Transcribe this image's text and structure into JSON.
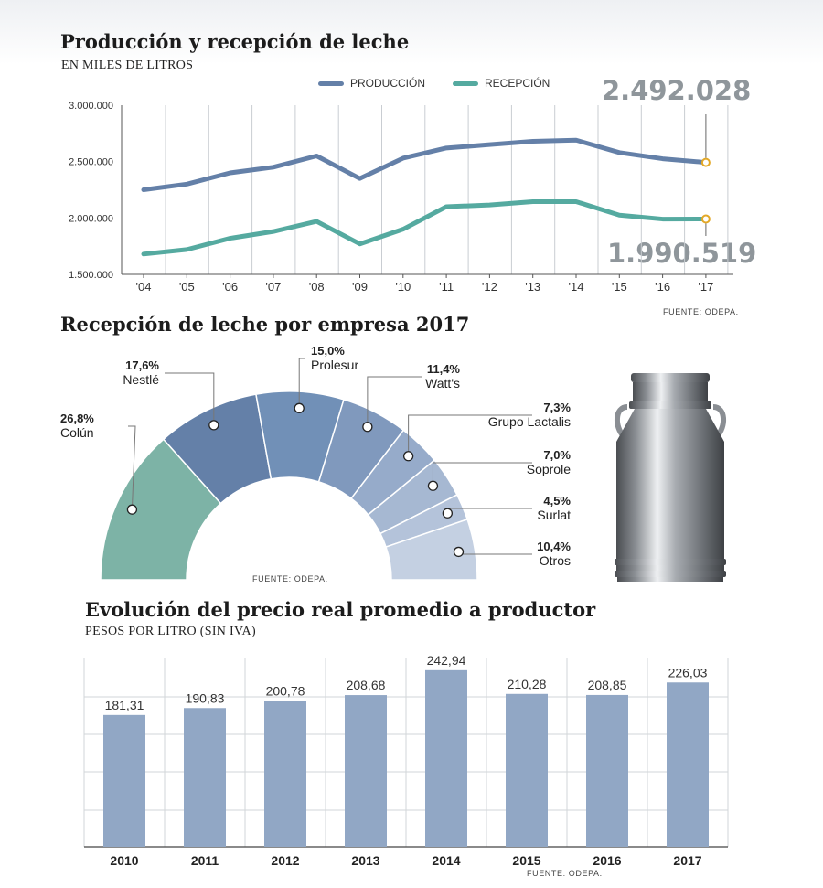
{
  "colors": {
    "produccion": "#6480a8",
    "recepcion": "#55aaa0",
    "marker": "#e3a826",
    "bar": "#91a7c5",
    "donut": [
      "#7db3a6",
      "#6480a8",
      "#7190b7",
      "#8099bd",
      "#96abca",
      "#a6b8d2",
      "#b4c3da",
      "#c4d0e2"
    ]
  },
  "chart_data": [
    {
      "type": "line",
      "title": "Producción y recepción de leche",
      "subtitle": "EN MILES DE LITROS",
      "x": [
        "'04",
        "'05",
        "'06",
        "'07",
        "'08",
        "'09",
        "'10",
        "'11",
        "'12",
        "'13",
        "'14",
        "'15",
        "'16",
        "'17"
      ],
      "y_ticks": [
        "3.000.000",
        "2.500.000",
        "2.000.000",
        "1.500.000"
      ],
      "ylim": [
        1500000,
        3000000
      ],
      "series": [
        {
          "name": "PRODUCCIÓN",
          "values": [
            2250000,
            2300000,
            2400000,
            2450000,
            2550000,
            2350000,
            2530000,
            2620000,
            2650000,
            2680000,
            2690000,
            2580000,
            2525000,
            2492028
          ]
        },
        {
          "name": "RECEPCIÓN",
          "values": [
            1680000,
            1720000,
            1820000,
            1880000,
            1970000,
            1770000,
            1900000,
            2100000,
            2115000,
            2145000,
            2145000,
            2025000,
            1990000,
            1990519
          ]
        }
      ],
      "callouts": {
        "produccion_last": "2.492.028",
        "recepcion_last": "1.990.519"
      },
      "source": "FUENTE: ODEPA.",
      "legend_position": "top-right",
      "grid": "vertical"
    },
    {
      "type": "pie",
      "title": "Recepción de leche por empresa 2017",
      "slices": [
        {
          "label": "Colún",
          "pct_label": "26,8%",
          "value": 26.8
        },
        {
          "label": "Nestlé",
          "pct_label": "17,6%",
          "value": 17.6
        },
        {
          "label": "Prolesur",
          "pct_label": "15,0%",
          "value": 15.0
        },
        {
          "label": "Watt's",
          "pct_label": "11,4%",
          "value": 11.4
        },
        {
          "label": "Grupo Lactalis",
          "pct_label": "7,3%",
          "value": 7.3
        },
        {
          "label": "Soprole",
          "pct_label": "7,0%",
          "value": 7.0
        },
        {
          "label": "Surlat",
          "pct_label": "4,5%",
          "value": 4.5
        },
        {
          "label": "Otros",
          "pct_label": "10,4%",
          "value": 10.4
        }
      ],
      "source": "FUENTE: ODEPA."
    },
    {
      "type": "bar",
      "title": "Evolución del precio real promedio a productor",
      "subtitle": "PESOS POR LITRO (SIN IVA)",
      "categories": [
        "2010",
        "2011",
        "2012",
        "2013",
        "2014",
        "2015",
        "2016",
        "2017"
      ],
      "values": [
        181.31,
        190.83,
        200.78,
        208.68,
        242.94,
        210.28,
        208.85,
        226.03
      ],
      "value_labels": [
        "181,31",
        "190,83",
        "200,78",
        "208,68",
        "242,94",
        "210,28",
        "208,85",
        "226,03"
      ],
      "ylim": [
        0,
        250
      ],
      "grid": "horizontal",
      "source": "FUENTE: ODEPA."
    }
  ]
}
